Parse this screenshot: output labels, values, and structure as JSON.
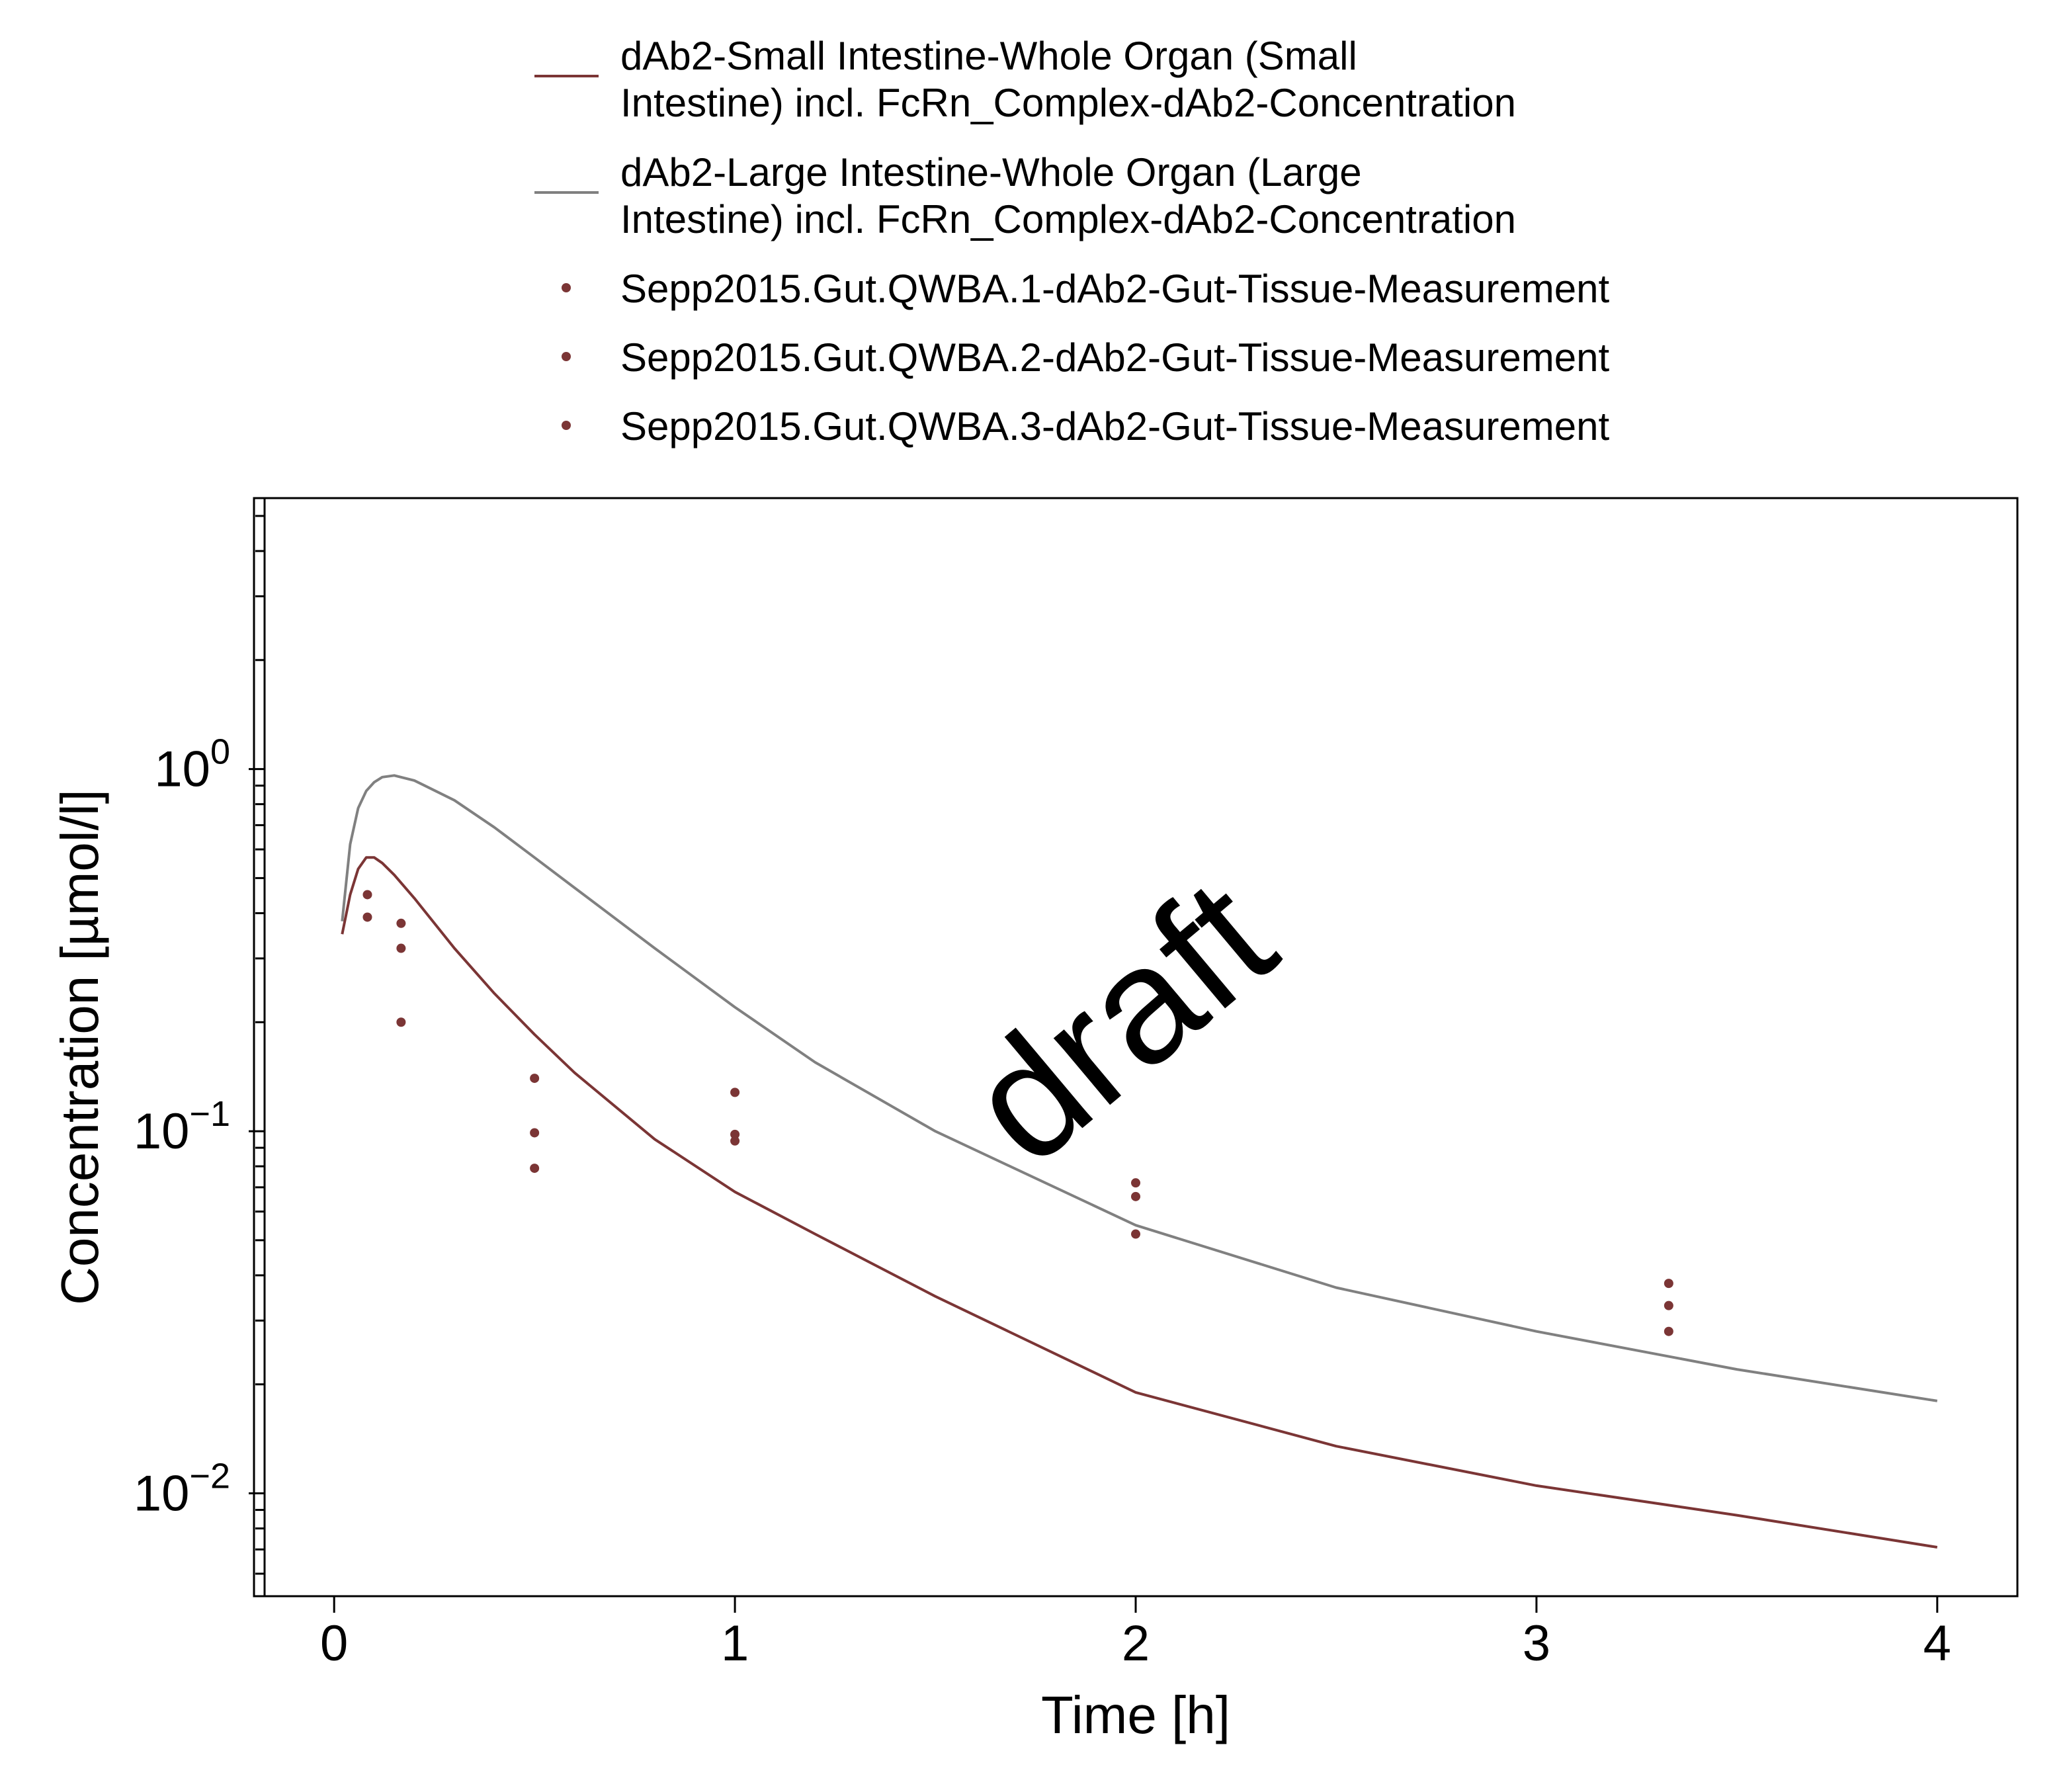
{
  "chart_data": {
    "type": "line",
    "xlabel": "Time [h]",
    "ylabel": "Concentration [µmol/l]",
    "y_scale": "log",
    "xlim": [
      -0.2,
      4.2
    ],
    "ylim": [
      0.0052,
      5.6
    ],
    "x_ticks": [
      0,
      1,
      2,
      3,
      4
    ],
    "x_tick_labels": [
      "0",
      "1",
      "2",
      "3",
      "4"
    ],
    "y_ticks": [
      {
        "base": "10",
        "exp": "0",
        "value": 1
      },
      {
        "base": "10",
        "exp": "−1",
        "value": 0.1
      },
      {
        "base": "10",
        "exp": "−2",
        "value": 0.01
      }
    ],
    "legend_position": "top",
    "watermark": "draft",
    "series": [
      {
        "name": "dAb2-Small Intestine-Whole Organ (Small Intestine) incl. FcRn_Complex-dAb2-Concentration",
        "name_lines": [
          "dAb2-Small Intestine-Whole Organ (Small",
          "Intestine) incl. FcRn_Complex-dAb2-Concentration"
        ],
        "kind": "line",
        "color": "#7b3535",
        "x": [
          0.02,
          0.04,
          0.06,
          0.08,
          0.1,
          0.12,
          0.15,
          0.2,
          0.3,
          0.4,
          0.5,
          0.6,
          0.8,
          1.0,
          1.2,
          1.5,
          2.0,
          2.5,
          3.0,
          3.5,
          4.0
        ],
        "y": [
          0.35,
          0.45,
          0.53,
          0.57,
          0.57,
          0.55,
          0.51,
          0.44,
          0.32,
          0.24,
          0.185,
          0.145,
          0.095,
          0.068,
          0.052,
          0.035,
          0.019,
          0.0135,
          0.0105,
          0.0087,
          0.0071
        ]
      },
      {
        "name": "dAb2-Large Intestine-Whole Organ (Large Intestine) incl. FcRn_Complex-dAb2-Concentration",
        "name_lines": [
          "dAb2-Large Intestine-Whole Organ (Large",
          "Intestine) incl. FcRn_Complex-dAb2-Concentration"
        ],
        "kind": "line",
        "color": "#808080",
        "x": [
          0.02,
          0.04,
          0.06,
          0.08,
          0.1,
          0.12,
          0.15,
          0.2,
          0.3,
          0.4,
          0.5,
          0.6,
          0.8,
          1.0,
          1.2,
          1.5,
          2.0,
          2.5,
          3.0,
          3.5,
          4.0
        ],
        "y": [
          0.38,
          0.62,
          0.78,
          0.87,
          0.92,
          0.95,
          0.96,
          0.93,
          0.82,
          0.69,
          0.57,
          0.47,
          0.32,
          0.22,
          0.155,
          0.1,
          0.055,
          0.037,
          0.028,
          0.022,
          0.018
        ]
      },
      {
        "name": "Sepp2015.Gut.QWBA.1-dAb2-Gut-Tissue-Measurement",
        "kind": "scatter",
        "color": "#7b3535",
        "x": [
          0.083,
          0.167,
          0.5,
          1.0,
          2.0,
          3.33
        ],
        "y": [
          0.45,
          0.375,
          0.14,
          0.128,
          0.072,
          0.038
        ]
      },
      {
        "name": "Sepp2015.Gut.QWBA.2-dAb2-Gut-Tissue-Measurement",
        "kind": "scatter",
        "color": "#7b3535",
        "x": [
          0.083,
          0.167,
          0.5,
          1.0,
          2.0,
          3.33
        ],
        "y": [
          0.39,
          0.32,
          0.099,
          0.098,
          0.066,
          0.033
        ]
      },
      {
        "name": "Sepp2015.Gut.QWBA.3-dAb2-Gut-Tissue-Measurement",
        "kind": "scatter",
        "color": "#7b3535",
        "x": [
          0.167,
          0.5,
          1.0,
          2.0,
          3.33
        ],
        "y": [
          0.2,
          0.079,
          0.094,
          0.052,
          0.028
        ]
      }
    ]
  }
}
